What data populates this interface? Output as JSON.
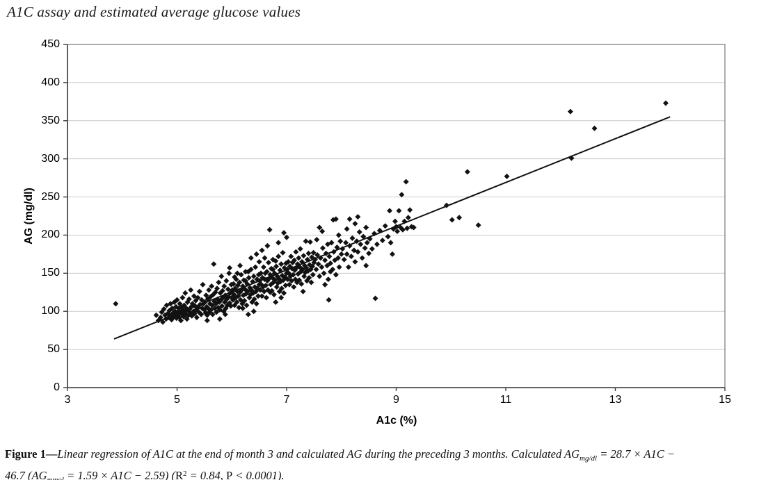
{
  "header": {
    "title": "A1C assay and estimated average glucose values"
  },
  "caption": {
    "lines": [
      [
        {
          "text": "Figure 1",
          "bold": true
        },
        {
          "text": "—",
          "bold": true
        },
        {
          "text": "Linear regression of A1C at the end of month 3 and calculated AG during the preceding 3 months. Calculated AG",
          "italic": true
        },
        {
          "text": "mg/dl",
          "italic": true,
          "sub": true
        },
        {
          "text": " = 28.7 × A1C −",
          "italic": true
        }
      ],
      [
        {
          "text": "46.7 (AG",
          "italic": true
        },
        {
          "text": "mmol",
          "italic": true,
          "sub": true
        },
        {
          "text": " = 1.59 × A1C − 2.59) (",
          "italic": true
        },
        {
          "text": "R"
        },
        {
          "text": "2",
          "sup": true
        },
        {
          "text": " = 0.84, ",
          "italic": true
        },
        {
          "text": "P"
        },
        {
          "text": " < 0.0001).",
          "italic": true
        }
      ]
    ]
  },
  "chart_data": {
    "type": "scatter",
    "title": "A1C assay and estimated average glucose values",
    "xlabel": "A1c (%)",
    "ylabel": "AG (mg/dl)",
    "xlim": [
      3,
      15
    ],
    "ylim": [
      0,
      450
    ],
    "xticks": [
      3,
      5,
      7,
      9,
      11,
      13,
      15
    ],
    "yticks": [
      0,
      50,
      100,
      150,
      200,
      250,
      300,
      350,
      400,
      450
    ],
    "grid": "horizontal",
    "legend": "none",
    "marker": "diamond",
    "marker_size": 4,
    "marker_color": "#121212",
    "colors": {
      "grid": "#c9c9c9",
      "border": "#808080",
      "axis": "#3d3d3d",
      "background": "#ffffff"
    },
    "regression_line": {
      "slope": 28.7,
      "intercept": -46.7,
      "x_start": 3.85,
      "x_end": 14.0,
      "color": "#121212",
      "r_squared": 0.84,
      "p_value": "< 0.0001"
    },
    "points": [
      [
        3.88,
        110
      ],
      [
        4.62,
        95
      ],
      [
        4.66,
        88
      ],
      [
        4.7,
        92
      ],
      [
        4.72,
        99
      ],
      [
        4.74,
        86
      ],
      [
        4.76,
        103
      ],
      [
        4.78,
        95
      ],
      [
        4.8,
        90
      ],
      [
        4.81,
        108
      ],
      [
        4.83,
        97
      ],
      [
        4.85,
        92
      ],
      [
        4.86,
        101
      ],
      [
        4.88,
        110
      ],
      [
        4.89,
        95
      ],
      [
        4.9,
        89
      ],
      [
        4.91,
        104
      ],
      [
        4.93,
        98
      ],
      [
        4.94,
        93
      ],
      [
        4.95,
        112
      ],
      [
        4.96,
        100
      ],
      [
        4.97,
        95
      ],
      [
        4.98,
        106
      ],
      [
        4.99,
        91
      ],
      [
        5.0,
        99
      ],
      [
        5.0,
        115
      ],
      [
        5.02,
        96
      ],
      [
        5.03,
        104
      ],
      [
        5.04,
        92
      ],
      [
        5.05,
        110
      ],
      [
        5.06,
        99
      ],
      [
        5.07,
        88
      ],
      [
        5.08,
        105
      ],
      [
        5.09,
        96
      ],
      [
        5.1,
        118
      ],
      [
        5.11,
        101
      ],
      [
        5.12,
        93
      ],
      [
        5.13,
        108
      ],
      [
        5.14,
        99
      ],
      [
        5.15,
        124
      ],
      [
        5.16,
        96
      ],
      [
        5.17,
        104
      ],
      [
        5.18,
        90
      ],
      [
        5.19,
        112
      ],
      [
        5.2,
        101
      ],
      [
        5.21,
        95
      ],
      [
        5.22,
        116
      ],
      [
        5.23,
        103
      ],
      [
        5.24,
        98
      ],
      [
        5.25,
        128
      ],
      [
        5.26,
        106
      ],
      [
        5.27,
        94
      ],
      [
        5.28,
        110
      ],
      [
        5.3,
        100
      ],
      [
        5.31,
        120
      ],
      [
        5.32,
        97
      ],
      [
        5.33,
        107
      ],
      [
        5.34,
        114
      ],
      [
        5.35,
        102
      ],
      [
        5.36,
        92
      ],
      [
        5.38,
        118
      ],
      [
        5.39,
        105
      ],
      [
        5.4,
        99
      ],
      [
        5.41,
        126
      ],
      [
        5.42,
        109
      ],
      [
        5.44,
        96
      ],
      [
        5.45,
        115
      ],
      [
        5.46,
        104
      ],
      [
        5.47,
        135
      ],
      [
        5.48,
        110
      ],
      [
        5.5,
        102
      ],
      [
        5.51,
        112
      ],
      [
        5.52,
        98
      ],
      [
        5.53,
        121
      ],
      [
        5.54,
        106
      ],
      [
        5.55,
        95
      ],
      [
        5.56,
        116
      ],
      [
        5.57,
        104
      ],
      [
        5.58,
        128
      ],
      [
        5.59,
        99
      ],
      [
        5.6,
        110
      ],
      [
        5.61,
        119
      ],
      [
        5.62,
        102
      ],
      [
        5.63,
        133
      ],
      [
        5.64,
        108
      ],
      [
        5.65,
        96
      ],
      [
        5.66,
        122
      ],
      [
        5.67,
        162
      ],
      [
        5.68,
        113
      ],
      [
        5.69,
        104
      ],
      [
        5.7,
        125
      ],
      [
        5.71,
        110
      ],
      [
        5.72,
        99
      ],
      [
        5.73,
        130
      ],
      [
        5.74,
        116
      ],
      [
        5.75,
        105
      ],
      [
        5.76,
        138
      ],
      [
        5.77,
        112
      ],
      [
        5.78,
        102
      ],
      [
        5.79,
        124
      ],
      [
        5.8,
        115
      ],
      [
        5.81,
        146
      ],
      [
        5.82,
        107
      ],
      [
        5.83,
        127
      ],
      [
        5.84,
        118
      ],
      [
        5.85,
        100
      ],
      [
        5.86,
        133
      ],
      [
        5.87,
        112
      ],
      [
        5.88,
        121
      ],
      [
        5.89,
        104
      ],
      [
        5.9,
        140
      ],
      [
        5.91,
        116
      ],
      [
        5.92,
        108
      ],
      [
        5.93,
        129
      ],
      [
        5.94,
        119
      ],
      [
        5.95,
        150
      ],
      [
        5.96,
        157
      ],
      [
        5.96,
        111
      ],
      [
        5.97,
        124
      ],
      [
        5.98,
        107
      ],
      [
        5.99,
        135
      ],
      [
        6.0,
        118
      ],
      [
        6.0,
        126
      ],
      [
        5.78,
        90
      ],
      [
        5.55,
        88
      ],
      [
        5.88,
        96
      ],
      [
        6.01,
        128
      ],
      [
        6.02,
        115
      ],
      [
        6.03,
        136
      ],
      [
        6.04,
        122
      ],
      [
        6.05,
        108
      ],
      [
        6.06,
        130
      ],
      [
        6.07,
        118
      ],
      [
        6.08,
        142
      ],
      [
        6.09,
        112
      ],
      [
        6.1,
        126
      ],
      [
        6.11,
        134
      ],
      [
        6.12,
        120
      ],
      [
        6.13,
        105
      ],
      [
        6.14,
        138
      ],
      [
        6.15,
        125
      ],
      [
        6.16,
        115
      ],
      [
        6.17,
        148
      ],
      [
        6.18,
        128
      ],
      [
        6.19,
        110
      ],
      [
        6.2,
        133
      ],
      [
        6.21,
        121
      ],
      [
        6.22,
        141
      ],
      [
        6.23,
        114
      ],
      [
        6.24,
        129
      ],
      [
        6.25,
        152
      ],
      [
        6.26,
        123
      ],
      [
        6.27,
        108
      ],
      [
        6.28,
        136
      ],
      [
        6.29,
        126
      ],
      [
        6.3,
        96
      ],
      [
        6.31,
        144
      ],
      [
        6.32,
        118
      ],
      [
        6.33,
        131
      ],
      [
        6.34,
        122
      ],
      [
        6.35,
        155
      ],
      [
        6.36,
        128
      ],
      [
        6.37,
        112
      ],
      [
        6.38,
        139
      ],
      [
        6.39,
        124
      ],
      [
        6.4,
        146
      ],
      [
        6.41,
        116
      ],
      [
        6.42,
        132
      ],
      [
        6.43,
        158
      ],
      [
        6.44,
        126
      ],
      [
        6.45,
        110
      ],
      [
        6.46,
        142
      ],
      [
        6.47,
        130
      ],
      [
        6.48,
        120
      ],
      [
        6.49,
        148
      ],
      [
        6.5,
        135
      ],
      [
        6.5,
        165
      ],
      [
        6.05,
        145
      ],
      [
        6.15,
        160
      ],
      [
        6.25,
        140
      ],
      [
        6.35,
        170
      ],
      [
        6.45,
        175
      ],
      [
        6.1,
        150
      ],
      [
        6.3,
        152
      ],
      [
        6.4,
        100
      ],
      [
        6.2,
        104
      ],
      [
        6.51,
        140
      ],
      [
        6.52,
        128
      ],
      [
        6.53,
        150
      ],
      [
        6.54,
        135
      ],
      [
        6.55,
        120
      ],
      [
        6.56,
        144
      ],
      [
        6.57,
        132
      ],
      [
        6.58,
        158
      ],
      [
        6.59,
        126
      ],
      [
        6.6,
        142
      ],
      [
        6.61,
        150
      ],
      [
        6.62,
        134
      ],
      [
        6.63,
        118
      ],
      [
        6.64,
        152
      ],
      [
        6.65,
        140
      ],
      [
        6.66,
        128
      ],
      [
        6.67,
        164
      ],
      [
        6.68,
        143
      ],
      [
        6.69,
        207
      ],
      [
        6.7,
        148
      ],
      [
        6.71,
        135
      ],
      [
        6.72,
        156
      ],
      [
        6.73,
        127
      ],
      [
        6.74,
        144
      ],
      [
        6.75,
        168
      ],
      [
        6.76,
        138
      ],
      [
        6.77,
        122
      ],
      [
        6.78,
        150
      ],
      [
        6.79,
        141
      ],
      [
        6.8,
        112
      ],
      [
        6.81,
        159
      ],
      [
        6.82,
        132
      ],
      [
        6.83,
        146
      ],
      [
        6.84,
        137
      ],
      [
        6.85,
        172
      ],
      [
        6.86,
        143
      ],
      [
        6.87,
        126
      ],
      [
        6.88,
        154
      ],
      [
        6.89,
        139
      ],
      [
        6.9,
        162
      ],
      [
        6.91,
        130
      ],
      [
        6.92,
        147
      ],
      [
        6.93,
        177
      ],
      [
        6.94,
        141
      ],
      [
        6.95,
        124
      ],
      [
        6.96,
        157
      ],
      [
        6.97,
        145
      ],
      [
        6.98,
        134
      ],
      [
        6.99,
        163
      ],
      [
        7.0,
        150
      ],
      [
        7.0,
        197
      ],
      [
        6.55,
        180
      ],
      [
        6.65,
        186
      ],
      [
        6.75,
        155
      ],
      [
        6.85,
        190
      ],
      [
        6.95,
        203
      ],
      [
        6.6,
        170
      ],
      [
        6.8,
        166
      ],
      [
        6.9,
        118
      ],
      [
        6.7,
        125
      ],
      [
        7.01,
        155
      ],
      [
        7.02,
        142
      ],
      [
        7.03,
        165
      ],
      [
        7.04,
        150
      ],
      [
        7.05,
        135
      ],
      [
        7.06,
        159
      ],
      [
        7.07,
        146
      ],
      [
        7.08,
        172
      ],
      [
        7.09,
        140
      ],
      [
        7.1,
        156
      ],
      [
        7.11,
        164
      ],
      [
        7.12,
        148
      ],
      [
        7.13,
        132
      ],
      [
        7.14,
        167
      ],
      [
        7.15,
        154
      ],
      [
        7.16,
        142
      ],
      [
        7.17,
        178
      ],
      [
        7.18,
        157
      ],
      [
        7.19,
        138
      ],
      [
        7.2,
        162
      ],
      [
        7.21,
        149
      ],
      [
        7.22,
        170
      ],
      [
        7.23,
        141
      ],
      [
        7.24,
        158
      ],
      [
        7.25,
        182
      ],
      [
        7.26,
        152
      ],
      [
        7.27,
        136
      ],
      [
        7.28,
        165
      ],
      [
        7.29,
        155
      ],
      [
        7.3,
        126
      ],
      [
        7.31,
        173
      ],
      [
        7.32,
        146
      ],
      [
        7.33,
        160
      ],
      [
        7.34,
        151
      ],
      [
        7.35,
        192
      ],
      [
        7.36,
        157
      ],
      [
        7.37,
        140
      ],
      [
        7.38,
        168
      ],
      [
        7.39,
        153
      ],
      [
        7.4,
        176
      ],
      [
        7.41,
        144
      ],
      [
        7.42,
        161
      ],
      [
        7.43,
        191
      ],
      [
        7.44,
        155
      ],
      [
        7.45,
        138
      ],
      [
        7.46,
        171
      ],
      [
        7.47,
        159
      ],
      [
        7.48,
        148
      ],
      [
        7.49,
        177
      ],
      [
        7.5,
        164
      ],
      [
        7.52,
        168
      ],
      [
        7.54,
        155
      ],
      [
        7.56,
        174
      ],
      [
        7.58,
        162
      ],
      [
        7.6,
        146
      ],
      [
        7.62,
        170
      ],
      [
        7.64,
        158
      ],
      [
        7.66,
        183
      ],
      [
        7.68,
        150
      ],
      [
        7.7,
        167
      ],
      [
        7.72,
        176
      ],
      [
        7.74,
        160
      ],
      [
        7.76,
        142
      ],
      [
        7.77,
        115
      ],
      [
        7.78,
        172
      ],
      [
        7.8,
        163
      ],
      [
        7.82,
        190
      ],
      [
        7.84,
        155
      ],
      [
        7.86,
        178
      ],
      [
        7.88,
        167
      ],
      [
        7.9,
        148
      ],
      [
        7.92,
        184
      ],
      [
        7.94,
        170
      ],
      [
        7.96,
        158
      ],
      [
        7.98,
        192
      ],
      [
        8.0,
        175
      ],
      [
        7.55,
        194
      ],
      [
        7.65,
        205
      ],
      [
        7.75,
        188
      ],
      [
        7.85,
        220
      ],
      [
        7.95,
        200
      ],
      [
        7.6,
        210
      ],
      [
        7.9,
        221
      ],
      [
        7.7,
        135
      ],
      [
        7.8,
        152
      ],
      [
        8.02,
        182
      ],
      [
        8.05,
        168
      ],
      [
        8.08,
        190
      ],
      [
        8.1,
        175
      ],
      [
        8.13,
        158
      ],
      [
        8.15,
        186
      ],
      [
        8.18,
        172
      ],
      [
        8.2,
        196
      ],
      [
        8.23,
        180
      ],
      [
        8.25,
        165
      ],
      [
        8.28,
        192
      ],
      [
        8.3,
        178
      ],
      [
        8.33,
        204
      ],
      [
        8.35,
        188
      ],
      [
        8.38,
        170
      ],
      [
        8.4,
        198
      ],
      [
        8.43,
        183
      ],
      [
        8.45,
        210
      ],
      [
        8.47,
        190
      ],
      [
        8.5,
        176
      ],
      [
        8.15,
        221
      ],
      [
        8.3,
        224
      ],
      [
        8.45,
        160
      ],
      [
        8.1,
        208
      ],
      [
        8.25,
        215
      ],
      [
        8.52,
        195
      ],
      [
        8.56,
        182
      ],
      [
        8.6,
        202
      ],
      [
        8.62,
        117
      ],
      [
        8.65,
        188
      ],
      [
        8.7,
        206
      ],
      [
        8.75,
        193
      ],
      [
        8.8,
        212
      ],
      [
        8.85,
        198
      ],
      [
        8.88,
        232
      ],
      [
        8.9,
        190
      ],
      [
        8.93,
        175
      ],
      [
        8.95,
        208
      ],
      [
        8.98,
        218
      ],
      [
        9.0,
        211
      ],
      [
        9.02,
        205
      ],
      [
        9.05,
        232
      ],
      [
        9.08,
        210
      ],
      [
        9.1,
        253
      ],
      [
        9.12,
        207
      ],
      [
        9.15,
        218
      ],
      [
        9.18,
        270
      ],
      [
        9.2,
        209
      ],
      [
        9.22,
        223
      ],
      [
        9.25,
        233
      ],
      [
        9.28,
        211
      ],
      [
        9.32,
        210
      ],
      [
        9.92,
        239
      ],
      [
        10.02,
        220
      ],
      [
        10.15,
        223
      ],
      [
        10.3,
        283
      ],
      [
        10.5,
        213
      ],
      [
        11.02,
        277
      ],
      [
        12.18,
        362
      ],
      [
        12.2,
        301
      ],
      [
        12.62,
        340
      ],
      [
        13.92,
        373
      ]
    ]
  }
}
